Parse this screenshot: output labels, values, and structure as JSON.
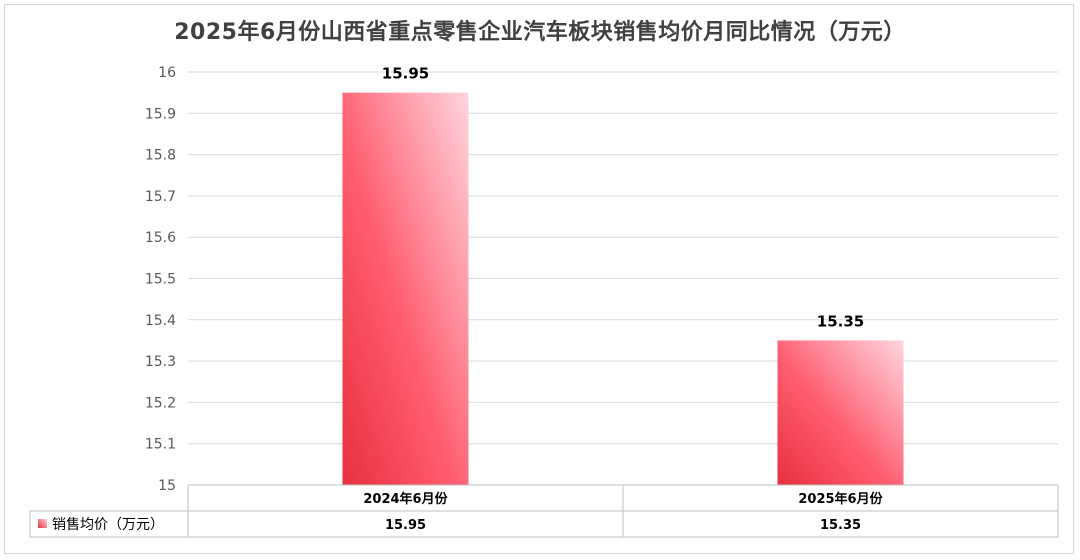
{
  "chart_data": {
    "type": "bar",
    "title": "2025年6月份山西省重点零售企业汽车板块销售均价月同比情况（万元）",
    "categories": [
      "2024年6月份",
      "2025年6月份"
    ],
    "series": [
      {
        "name": "销售均价（万元）",
        "values": [
          15.95,
          15.35
        ],
        "labels": [
          "15.95",
          "15.35"
        ]
      }
    ],
    "ylim": [
      15,
      16
    ],
    "yticks": [
      "15",
      "15.1",
      "15.2",
      "15.3",
      "15.4",
      "15.5",
      "15.6",
      "15.7",
      "15.8",
      "15.9",
      "16"
    ],
    "grid": true,
    "legend": "data-table",
    "xlabel": "",
    "ylabel": "",
    "colors": {
      "bar_dark": "#e8303f",
      "bar_mid": "#ff5e70",
      "bar_light": "#ffd6df"
    }
  }
}
